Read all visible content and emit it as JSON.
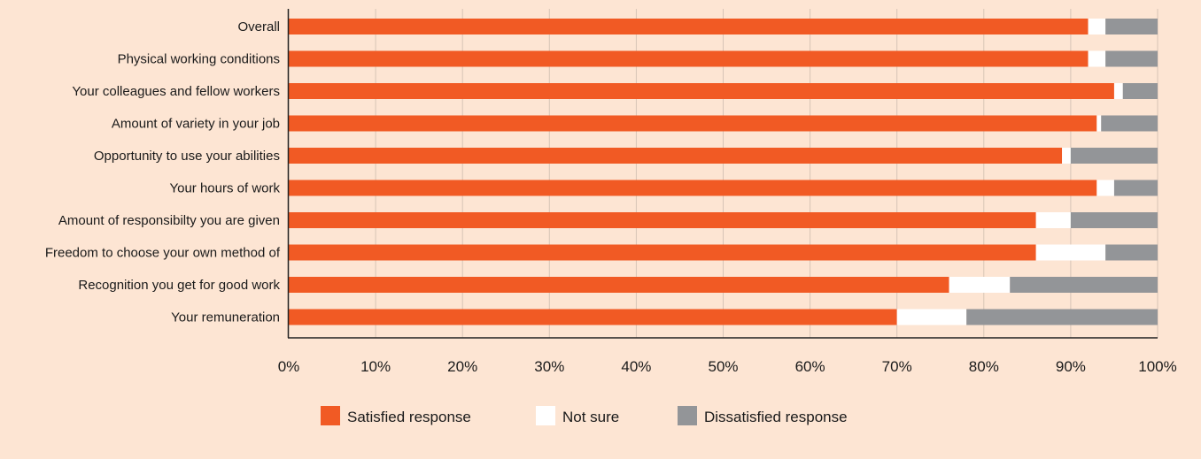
{
  "chart_data": {
    "type": "bar",
    "orientation": "horizontal",
    "stacked": true,
    "normalized": true,
    "title": "",
    "xlabel": "",
    "ylabel": "",
    "xlim": [
      0,
      100
    ],
    "grid": true,
    "legend_position": "bottom",
    "categories": [
      "Overall",
      "Physical working conditions",
      "Your colleagues and fellow workers",
      "Amount of variety in your job",
      "Opportunity to use your abilities",
      "Your hours of work",
      "Amount of responsibilty you are given",
      "Freedom to choose your own method of",
      "Recognition you get for good work",
      "Your remuneration"
    ],
    "x_ticks": [
      "0%",
      "10%",
      "20%",
      "30%",
      "40%",
      "50%",
      "60%",
      "70%",
      "80%",
      "90%",
      "100%"
    ],
    "series": [
      {
        "name": "Satisfied response",
        "color": "#f15a24",
        "values": [
          92,
          92,
          95,
          93,
          89,
          93,
          86,
          86,
          76,
          70
        ]
      },
      {
        "name": "Not sure",
        "color": "#ffffff",
        "values": [
          2,
          2,
          1,
          0.5,
          1,
          2,
          4,
          8,
          7,
          8
        ]
      },
      {
        "name": "Dissatisfied response",
        "color": "#939598",
        "values": [
          6,
          6,
          4,
          6.5,
          10,
          5,
          10,
          6,
          17,
          22
        ]
      }
    ]
  }
}
